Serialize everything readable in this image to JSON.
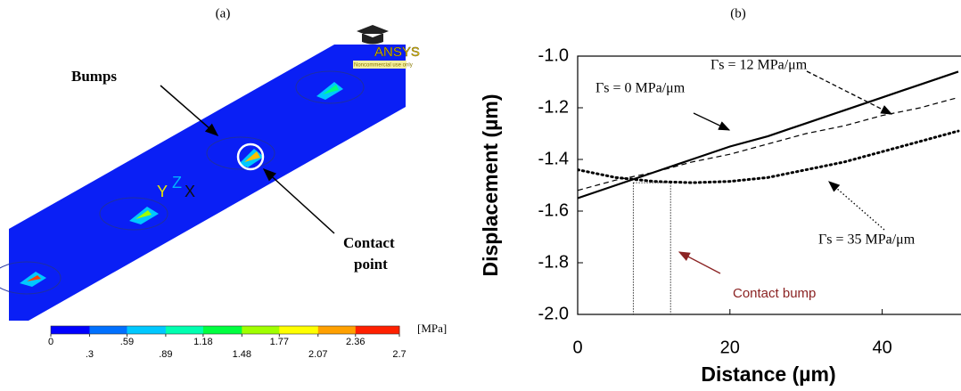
{
  "chart_data": [
    {
      "type": "contour",
      "title": "(a)",
      "labels": {
        "bumps": "Bumps",
        "contact_point": [
          "Contact",
          "point"
        ]
      },
      "logo": {
        "name": "ANSYS",
        "note": "Noncommercial use only"
      },
      "triad": [
        "Y",
        "Z",
        "X"
      ],
      "colorbar": {
        "unit": "[MPa]",
        "lim": [
          0,
          2.7
        ],
        "ticks": [
          0,
          {
            "value": 0.3,
            "label": ".3"
          },
          {
            "value": 0.59,
            "label": ".59"
          },
          {
            "value": 0.89,
            "label": ".89"
          },
          1.18,
          1.48,
          1.77,
          2.07,
          2.36,
          2.7
        ],
        "colors": [
          "#0000ff",
          "#0070ff",
          "#00c8ff",
          "#00ffb0",
          "#00ff40",
          "#a0ff00",
          "#ffff00",
          "#ffa000",
          "#ff2000"
        ]
      }
    },
    {
      "type": "line",
      "title": "(b)",
      "xlabel": "Distance (µm)",
      "ylabel": "Displacement (µm)",
      "x": [
        0,
        5,
        10,
        15,
        20,
        25,
        30,
        35,
        40,
        45,
        50
      ],
      "xlim": [
        0,
        50
      ],
      "xticks": [
        0,
        20,
        40
      ],
      "ylim": [
        -2.0,
        -1.0
      ],
      "yticks": [
        {
          "value": -2.0,
          "label": "-2.0"
        },
        -1.8,
        -1.6,
        -1.4,
        -1.2,
        {
          "value": -1.0,
          "label": "-1.0"
        }
      ],
      "series": [
        {
          "name": "Γs = 0 MPa/μm",
          "color": "#000000",
          "dash": "solid",
          "values": [
            -1.55,
            -1.5,
            -1.45,
            -1.4,
            -1.35,
            -1.31,
            -1.26,
            -1.21,
            -1.16,
            -1.11,
            -1.06
          ]
        },
        {
          "name": "Γs = 12 MPa/μm",
          "color": "#000000",
          "dash": "dashed",
          "values": [
            -1.52,
            -1.48,
            -1.45,
            -1.41,
            -1.38,
            -1.34,
            -1.3,
            -1.27,
            -1.23,
            -1.2,
            -1.16
          ]
        },
        {
          "name": "Γs = 35 MPa/μm",
          "color": "#000000",
          "dash": "dotted",
          "values": [
            -1.44,
            -1.47,
            -1.485,
            -1.49,
            -1.485,
            -1.47,
            -1.44,
            -1.41,
            -1.37,
            -1.33,
            -1.29
          ]
        }
      ],
      "annotation": {
        "text": "Contact bump",
        "color": "#8b2323",
        "xlim": [
          7.3,
          12.2
        ],
        "ylim": [
          -2.0,
          -1.49
        ]
      }
    }
  ]
}
